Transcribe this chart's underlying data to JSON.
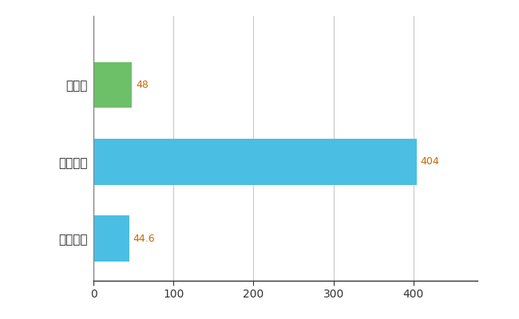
{
  "categories": [
    "全国平均",
    "全国最大",
    "岡山県"
  ],
  "values": [
    44.6,
    404,
    48
  ],
  "bar_colors": [
    "#4BBEE3",
    "#4BBEE3",
    "#6DC067"
  ],
  "value_labels": [
    "44.6",
    "404",
    "48"
  ],
  "xlim": [
    0,
    480
  ],
  "xticks": [
    0,
    100,
    200,
    300,
    400
  ],
  "background_color": "#ffffff",
  "grid_color": "#c8c8c8",
  "tick_label_color": "#333333",
  "value_label_color": "#cc6600",
  "bar_height": 0.6,
  "figsize": [
    6.5,
    4.0
  ],
  "dpi": 100
}
